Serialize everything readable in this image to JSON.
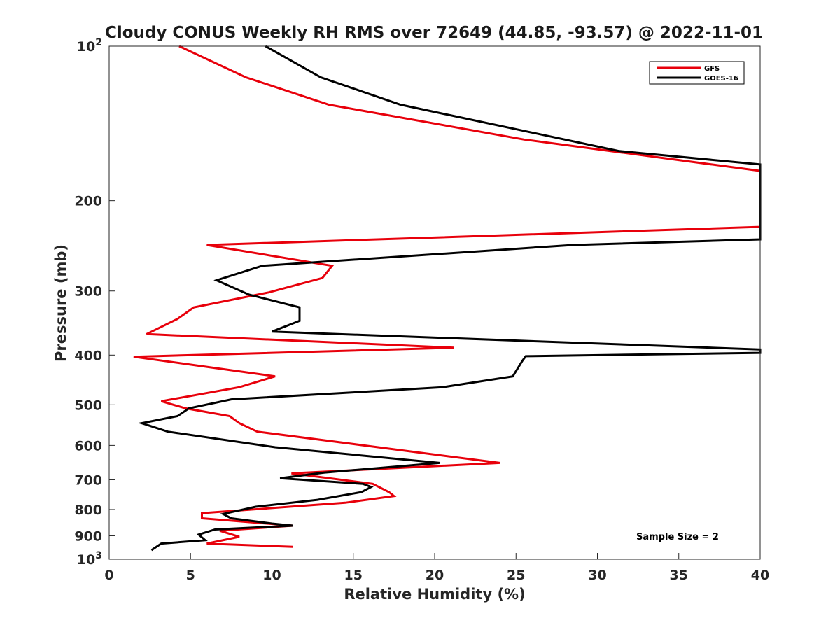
{
  "chart_data": {
    "type": "line",
    "title": "Cloudy CONUS Weekly RH RMS over 72649 (44.85, -93.57) @ 2022-11-01",
    "xlabel": "Relative Humidity (%)",
    "ylabel": "Pressure (mb)",
    "xlim": [
      0,
      40
    ],
    "ylim": [
      100,
      1000
    ],
    "y_scale": "log",
    "y_reversed": true,
    "grid": false,
    "legend_position": "top-right",
    "x_ticks": [
      "0",
      "5",
      "10",
      "15",
      "20",
      "25",
      "30",
      "35",
      "40"
    ],
    "y_ticks": [
      {
        "value": 100,
        "label": "10",
        "exp": "2"
      },
      {
        "value": 200,
        "label": "200"
      },
      {
        "value": 300,
        "label": "300"
      },
      {
        "value": 400,
        "label": "400"
      },
      {
        "value": 500,
        "label": "500"
      },
      {
        "value": 600,
        "label": "600"
      },
      {
        "value": 700,
        "label": "700"
      },
      {
        "value": 800,
        "label": "800"
      },
      {
        "value": 900,
        "label": "900"
      },
      {
        "value": 1000,
        "label": "10",
        "exp": "3"
      }
    ],
    "annotation": "Sample Size = 2",
    "series": [
      {
        "name": "GFS",
        "color": "#e8000b",
        "points": [
          [
            4.3,
            100
          ],
          [
            8.4,
            115
          ],
          [
            13.5,
            130
          ],
          [
            25.5,
            152
          ],
          [
            40,
            175
          ],
          [
            40,
            225
          ],
          [
            6,
            244
          ],
          [
            13.7,
            268
          ],
          [
            13.1,
            283
          ],
          [
            9.8,
            302
          ],
          [
            5.2,
            323
          ],
          [
            4.2,
            340
          ],
          [
            2.3,
            364
          ],
          [
            21.2,
            387
          ],
          [
            1.5,
            403
          ],
          [
            6.3,
            423
          ],
          [
            10.2,
            440
          ],
          [
            8,
            462
          ],
          [
            3.2,
            492
          ],
          [
            4.7,
            508
          ],
          [
            7.4,
            526
          ],
          [
            8,
            543
          ],
          [
            9.1,
            564
          ],
          [
            24,
            649
          ],
          [
            11.2,
            680
          ],
          [
            16.2,
            713
          ],
          [
            17.2,
            740
          ],
          [
            17.5,
            753
          ],
          [
            14.5,
            776
          ],
          [
            5.7,
            813
          ],
          [
            5.7,
            832
          ],
          [
            9.7,
            852
          ],
          [
            11.3,
            860
          ],
          [
            6.8,
            880
          ],
          [
            8,
            904
          ],
          [
            6,
            932
          ],
          [
            11.3,
            946
          ]
        ]
      },
      {
        "name": "GOES-16",
        "color": "#000000",
        "points": [
          [
            9.6,
            100
          ],
          [
            13,
            115
          ],
          [
            17.9,
            130
          ],
          [
            31.3,
            160
          ],
          [
            40,
            170
          ],
          [
            40,
            238
          ],
          [
            28.5,
            244
          ],
          [
            9.4,
            268
          ],
          [
            6.6,
            286
          ],
          [
            8.6,
            305
          ],
          [
            11.7,
            323
          ],
          [
            11.7,
            343
          ],
          [
            10,
            360
          ],
          [
            40,
            390
          ],
          [
            40,
            396
          ],
          [
            25.6,
            402
          ],
          [
            25.4,
            410
          ],
          [
            24.8,
            440
          ],
          [
            20.5,
            462
          ],
          [
            7.5,
            488
          ],
          [
            4.9,
            508
          ],
          [
            4.2,
            526
          ],
          [
            2,
            543
          ],
          [
            3.6,
            564
          ],
          [
            10.2,
            605
          ],
          [
            20.3,
            649
          ],
          [
            13.2,
            678
          ],
          [
            10.5,
            695
          ],
          [
            15.6,
            713
          ],
          [
            16.1,
            723
          ],
          [
            15.5,
            740
          ],
          [
            12.8,
            766
          ],
          [
            9,
            790
          ],
          [
            7,
            816
          ],
          [
            7.5,
            832
          ],
          [
            10,
            852
          ],
          [
            11.3,
            860
          ],
          [
            6.5,
            875
          ],
          [
            5.5,
            895
          ],
          [
            5.9,
            918
          ],
          [
            3.2,
            932
          ],
          [
            2.6,
            960
          ]
        ]
      }
    ]
  }
}
